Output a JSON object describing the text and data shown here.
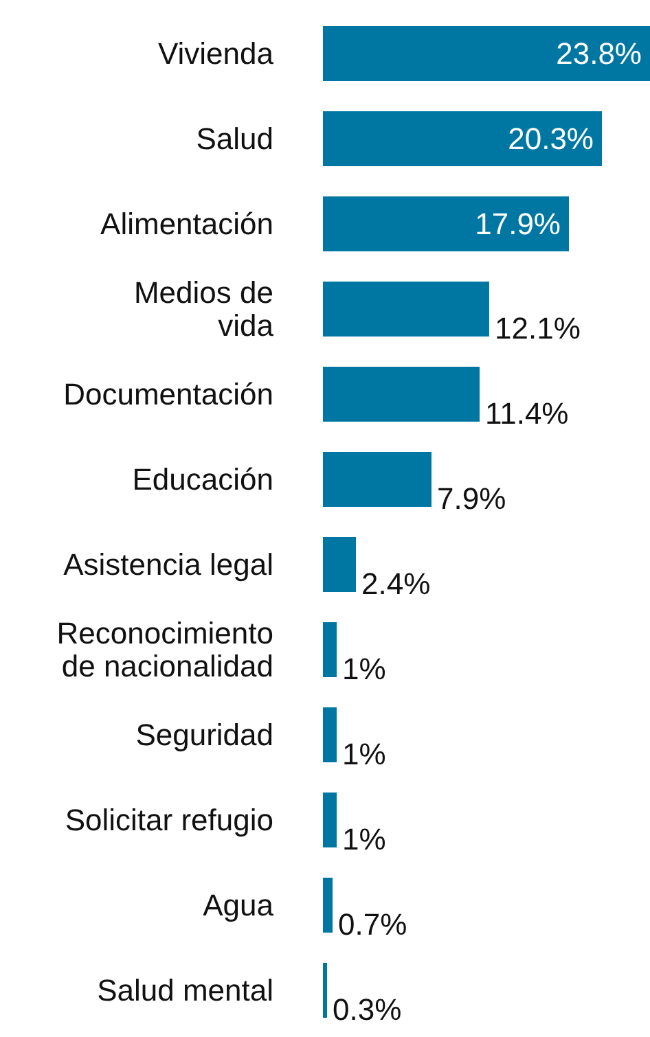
{
  "chart_data": {
    "type": "bar",
    "orientation": "horizontal",
    "categories": [
      "Vivienda",
      "Salud",
      "Alimentación",
      "Medios de\nvida",
      "Documentación",
      "Educación",
      "Asistencia legal",
      "Reconocimiento\nde nacionalidad",
      "Seguridad",
      "Solicitar refugio",
      "Agua",
      "Salud mental"
    ],
    "values": [
      23.8,
      20.3,
      17.9,
      12.1,
      11.4,
      7.9,
      2.4,
      1,
      1,
      1,
      0.7,
      0.3
    ],
    "value_labels": [
      "23.8%",
      "20.3%",
      "17.9%",
      "12.1%",
      "11.4%",
      "7.9%",
      "2.4%",
      "1%",
      "1%",
      "1%",
      "0.7%",
      "0.3%"
    ],
    "color": "#0077a3"
  }
}
